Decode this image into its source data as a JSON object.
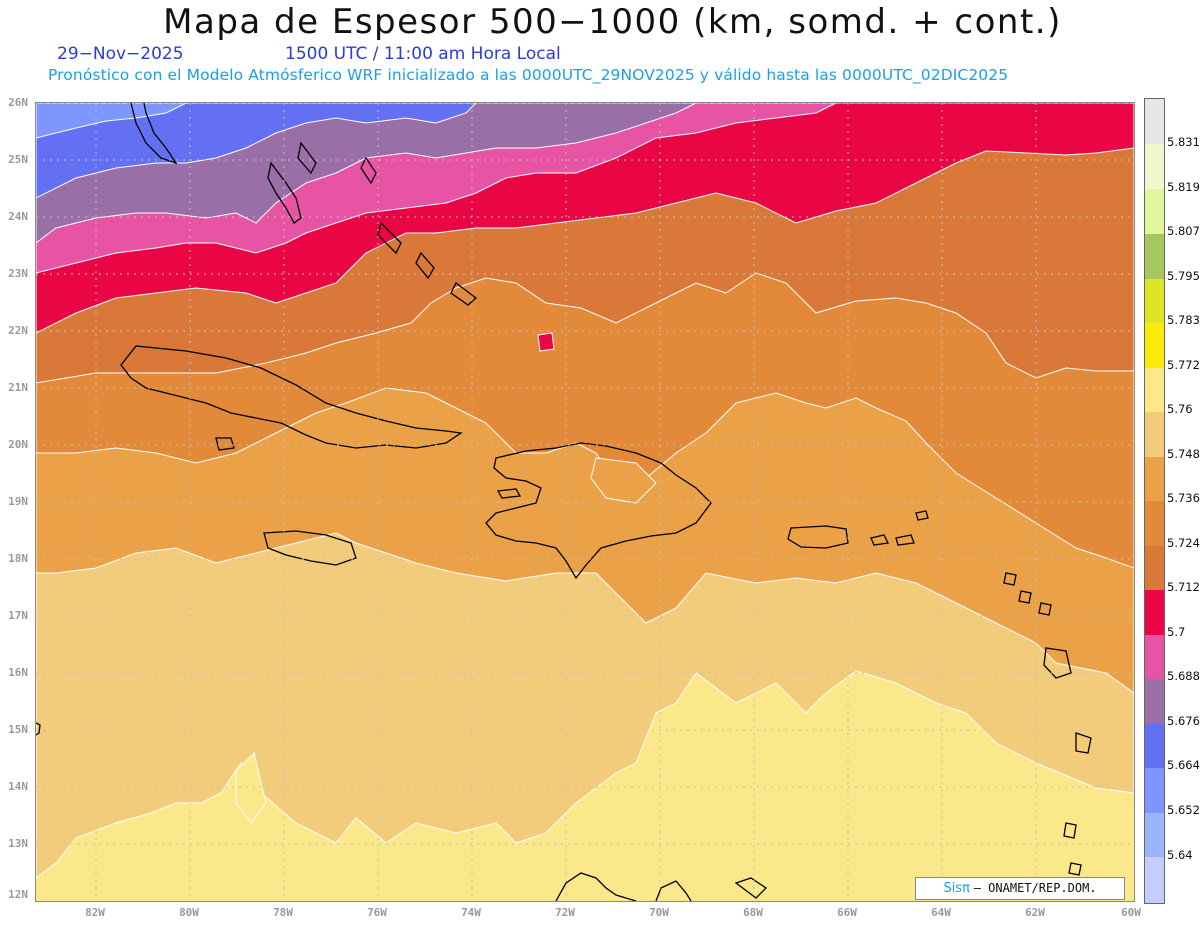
{
  "header": {
    "title": "Mapa de Espesor 500−1000 (km, somd. + cont.)",
    "date": "29−Nov−2025",
    "time": "1500 UTC / 11:00 am Hora Local",
    "subtitle": "Pronóstico con el Modelo Atmósferico WRF inicializado a las 0000UTC_29NOV2025 y válido hasta las  0000UTC_02DIC2025"
  },
  "map": {
    "lon_range": [
      -83.2,
      -59.9
    ],
    "lat_range": [
      11.9,
      26.2
    ],
    "lat_labels": [
      "26N",
      "25N",
      "24N",
      "23N",
      "22N",
      "21N",
      "20N",
      "19N",
      "18N",
      "17N",
      "16N",
      "15N",
      "14N",
      "13N",
      "12N"
    ],
    "lon_labels": [
      "82W",
      "80W",
      "78W",
      "76W",
      "74W",
      "72W",
      "70W",
      "68W",
      "66W",
      "64W",
      "62W",
      "60W"
    ],
    "grid": "dotted",
    "fill_colors": {
      "5.652": "#7f95ff",
      "5.664": "#6470f4",
      "5.676": "#9a6fa8",
      "5.688": "#e854a4",
      "5.700": "#ea0645",
      "5.712": "#d97838",
      "5.724": "#e28a3a",
      "5.736": "#eaa148",
      "5.748": "#f2cc7a",
      "5.760": "#fbe88a"
    }
  },
  "colorbar": {
    "labels": [
      "5.831",
      "5.819",
      "5.807",
      "5.795",
      "5.783",
      "5.772",
      "5.76",
      "5.748",
      "5.736",
      "5.724",
      "5.712",
      "5.7",
      "5.688",
      "5.676",
      "5.664",
      "5.652",
      "5.64"
    ],
    "colors": [
      "#e6e6e6",
      "#eff7cf",
      "#e1f59a",
      "#a7c761",
      "#dee623",
      "#fbeb0a",
      "#fbe88a",
      "#f2cc7a",
      "#eaa148",
      "#e28a3a",
      "#d97838",
      "#ea0645",
      "#e854a4",
      "#9a6fa8",
      "#6470f4",
      "#7f95ff",
      "#9ab4ff",
      "#c3cdff"
    ]
  },
  "credit": {
    "logo": "Sisπ",
    "text": "– ONAMET/REP.DOM."
  }
}
